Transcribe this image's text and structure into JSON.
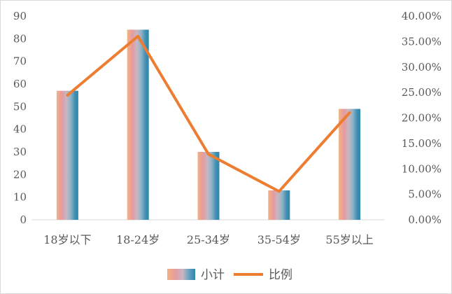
{
  "chart_data": {
    "type": "bar",
    "categories": [
      "18岁以下",
      "18-24岁",
      "25-34岁",
      "35-54岁",
      "55岁以上"
    ],
    "series": [
      {
        "name": "小计",
        "type": "bar",
        "axis": "left",
        "values": [
          57,
          84,
          30,
          13,
          49
        ]
      },
      {
        "name": "比例",
        "type": "line",
        "axis": "right",
        "values": [
          0.2447,
          0.3605,
          0.1288,
          0.0558,
          0.2103
        ]
      }
    ],
    "y_left": {
      "ylim": [
        0,
        90
      ],
      "ticks": [
        "0",
        "10",
        "20",
        "30",
        "40",
        "50",
        "60",
        "70",
        "80",
        "90"
      ]
    },
    "y_right": {
      "ylim": [
        0,
        0.4
      ],
      "ticks": [
        "0.00%",
        "5.00%",
        "10.00%",
        "15.00%",
        "20.00%",
        "25.00%",
        "30.00%",
        "35.00%",
        "40.00%"
      ]
    },
    "legend_position": "bottom",
    "grid": false,
    "colors": {
      "line": "#ED7D31",
      "bar_gradient": [
        "#F4B183",
        "#E59AA0",
        "#B4A7B4",
        "#7FA9C2",
        "#3F8FB0",
        "#2E86AB"
      ]
    }
  }
}
